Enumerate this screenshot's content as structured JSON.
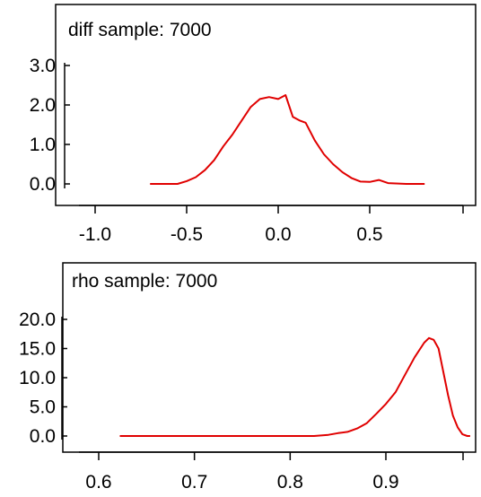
{
  "chart_data": [
    {
      "type": "line",
      "title": "diff sample: 7000",
      "xlabel": "",
      "ylabel": "",
      "xlim": [
        -1.1,
        1.0
      ],
      "ylim": [
        -0.1,
        3.2
      ],
      "x_ticks": [
        -1.0,
        -0.5,
        0.0,
        0.5
      ],
      "x_tick_labels": [
        "-1.0",
        "-0.5",
        "0.0",
        "0.5"
      ],
      "y_ticks": [
        0.0,
        1.0,
        2.0,
        3.0
      ],
      "y_tick_labels": [
        "0.0",
        "1.0",
        "2.0",
        "3.0"
      ],
      "grid": false,
      "series": [
        {
          "color": "#e00000",
          "x": [
            -0.7,
            -0.55,
            -0.5,
            -0.45,
            -0.4,
            -0.35,
            -0.3,
            -0.25,
            -0.2,
            -0.15,
            -0.1,
            -0.05,
            0.0,
            0.04,
            0.08,
            0.12,
            0.15,
            0.2,
            0.25,
            0.3,
            0.35,
            0.4,
            0.45,
            0.5,
            0.55,
            0.6,
            0.7,
            0.8
          ],
          "y": [
            0.0,
            0.0,
            0.07,
            0.17,
            0.35,
            0.6,
            0.95,
            1.25,
            1.6,
            1.95,
            2.15,
            2.2,
            2.15,
            2.25,
            1.7,
            1.6,
            1.55,
            1.1,
            0.75,
            0.5,
            0.3,
            0.15,
            0.06,
            0.05,
            0.1,
            0.02,
            0.0,
            0.0
          ]
        }
      ]
    },
    {
      "type": "line",
      "title": "rho sample: 7000",
      "xlabel": "",
      "ylabel": "",
      "xlim": [
        0.58,
        1.0
      ],
      "ylim": [
        -1,
        24
      ],
      "x_ticks": [
        0.6,
        0.7,
        0.8,
        0.9
      ],
      "x_tick_labels": [
        "0.6",
        "0.7",
        "0.8",
        "0.9"
      ],
      "y_ticks": [
        0.0,
        5.0,
        10.0,
        15.0,
        20.0
      ],
      "y_tick_labels": [
        "0.0",
        "5.0",
        "10.0",
        "15.0",
        "20.0"
      ],
      "grid": false,
      "series": [
        {
          "color": "#e00000",
          "x": [
            0.622,
            0.7,
            0.8,
            0.825,
            0.84,
            0.85,
            0.86,
            0.87,
            0.88,
            0.89,
            0.9,
            0.91,
            0.92,
            0.93,
            0.94,
            0.945,
            0.95,
            0.955,
            0.96,
            0.965,
            0.97,
            0.975,
            0.98,
            0.985,
            0.988
          ],
          "y": [
            0.0,
            0.0,
            0.0,
            0.0,
            0.2,
            0.5,
            0.7,
            1.3,
            2.2,
            3.8,
            5.5,
            7.5,
            10.5,
            13.5,
            16.0,
            16.8,
            16.5,
            15.0,
            11.0,
            7.0,
            3.5,
            1.5,
            0.3,
            0.0,
            0.0
          ]
        }
      ]
    }
  ]
}
